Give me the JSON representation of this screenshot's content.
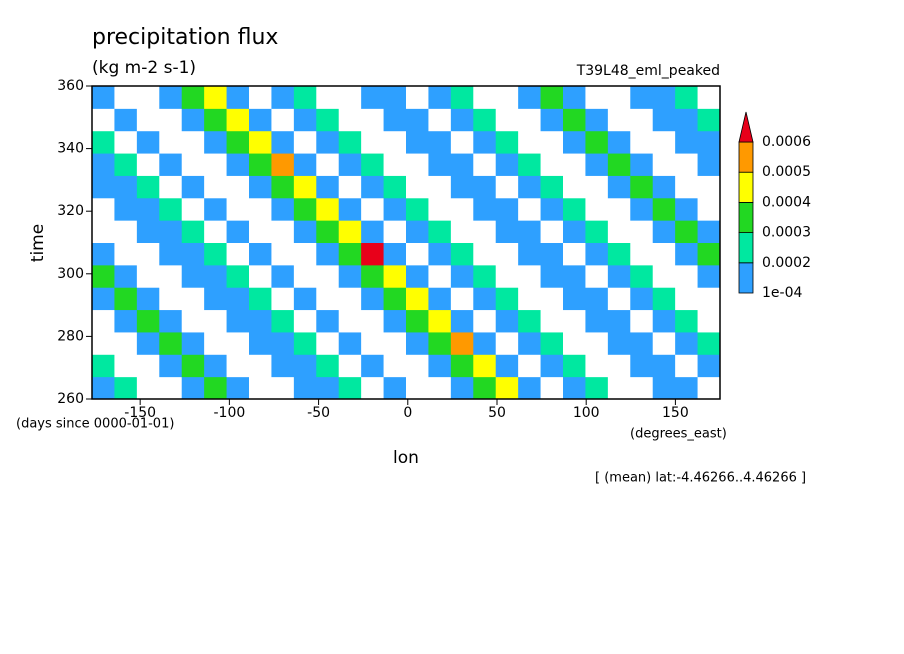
{
  "chart_data": {
    "type": "contour",
    "title": "precipitation flux",
    "subtitle": "(kg m-2 s-1)",
    "annotation": "T39L48_eml_peaked",
    "xlabel": "lon",
    "ylabel": "time",
    "yunits": "(days since 0000-01-01)",
    "xunits": "(degrees_east)",
    "footnote": "[ (mean) lat:-4.46266..4.46266 ]",
    "xlim": [
      -177,
      175
    ],
    "ylim": [
      260,
      360
    ],
    "xticks": [
      -150,
      -100,
      -50,
      0,
      50,
      100,
      150
    ],
    "yticks": [
      260,
      280,
      300,
      320,
      340,
      360
    ],
    "levels": [
      {
        "value": 0.0001,
        "label": "1e-04"
      },
      0.0002,
      0.0003,
      0.0004,
      0.0005,
      0.0006
    ],
    "colors": [
      "#2ea0ff",
      "#00e8a0",
      "#22d822",
      "#ffff00",
      "#ff9900",
      "#e8001a"
    ],
    "z": [
      [
        0.00015,
        0.00025,
        0,
        0,
        0.00015,
        0.00035,
        0.00015,
        0,
        0,
        0.00015,
        0.00015,
        0.00025,
        0,
        0.00015,
        0,
        0,
        0.00015,
        0.00035,
        0.00045,
        0.00015,
        0,
        0.00015,
        0.00025,
        0,
        0,
        0.00015,
        0.00015,
        0
      ],
      [
        0.00025,
        0,
        0,
        0.00015,
        0.00035,
        0.00015,
        0,
        0,
        0.00015,
        0.00015,
        0.00025,
        0,
        0.00015,
        0,
        0,
        0.00015,
        0.00035,
        0.00045,
        0.00015,
        0,
        0.00015,
        0.00025,
        0,
        0,
        0.00015,
        0.00015,
        0,
        0.00015
      ],
      [
        0,
        0,
        0.00015,
        0.00035,
        0.00015,
        0,
        0,
        0.00015,
        0.00015,
        0.00025,
        0,
        0.00015,
        0,
        0,
        0.00015,
        0.00035,
        0.00055,
        0.00015,
        0,
        0.00015,
        0.00025,
        0,
        0,
        0.00015,
        0.00015,
        0,
        0.00015,
        0.00025
      ],
      [
        0,
        0.00015,
        0.00035,
        0.00015,
        0,
        0,
        0.00015,
        0.00015,
        0.00025,
        0,
        0.00015,
        0,
        0,
        0.00015,
        0.00035,
        0.00045,
        0.00015,
        0,
        0.00015,
        0.00025,
        0,
        0,
        0.00015,
        0.00015,
        0,
        0.00015,
        0.00025,
        0
      ],
      [
        0.00015,
        0.00035,
        0.00015,
        0,
        0,
        0.00015,
        0.00015,
        0.00025,
        0,
        0.00015,
        0,
        0,
        0.00015,
        0.00035,
        0.00045,
        0.00015,
        0,
        0.00015,
        0.00025,
        0,
        0,
        0.00015,
        0.00015,
        0,
        0.00015,
        0.00025,
        0,
        0
      ],
      [
        0.00035,
        0.00015,
        0,
        0,
        0.00015,
        0.00015,
        0.00025,
        0,
        0.00015,
        0,
        0,
        0.00015,
        0.00035,
        0.00045,
        0.00015,
        0,
        0.00015,
        0.00025,
        0,
        0,
        0.00015,
        0.00015,
        0,
        0.00015,
        0.00025,
        0,
        0,
        0.00015
      ],
      [
        0.00015,
        0,
        0,
        0.00015,
        0.00015,
        0.00025,
        0,
        0.00015,
        0,
        0,
        0.00015,
        0.00035,
        0.00065,
        0.00015,
        0,
        0.00015,
        0.00025,
        0,
        0,
        0.00015,
        0.00015,
        0,
        0.00015,
        0.00025,
        0,
        0,
        0.00015,
        0.00035
      ],
      [
        0,
        0,
        0.00015,
        0.00015,
        0.00025,
        0,
        0.00015,
        0,
        0,
        0.00015,
        0.00035,
        0.00045,
        0.00015,
        0,
        0.00015,
        0.00025,
        0,
        0,
        0.00015,
        0.00015,
        0,
        0.00015,
        0.00025,
        0,
        0,
        0.00015,
        0.00035,
        0.00015
      ],
      [
        0,
        0.00015,
        0.00015,
        0.00025,
        0,
        0.00015,
        0,
        0,
        0.00015,
        0.00035,
        0.00045,
        0.00015,
        0,
        0.00015,
        0.00025,
        0,
        0,
        0.00015,
        0.00015,
        0,
        0.00015,
        0.00025,
        0,
        0,
        0.00015,
        0.00035,
        0.00015,
        0
      ],
      [
        0.00015,
        0.00015,
        0.00025,
        0,
        0.00015,
        0,
        0,
        0.00015,
        0.00035,
        0.00045,
        0.00015,
        0,
        0.00015,
        0.00025,
        0,
        0,
        0.00015,
        0.00015,
        0,
        0.00015,
        0.00025,
        0,
        0,
        0.00015,
        0.00035,
        0.00015,
        0,
        0
      ],
      [
        0.00015,
        0.00025,
        0,
        0.00015,
        0,
        0,
        0.00015,
        0.00035,
        0.00055,
        0.00015,
        0,
        0.00015,
        0.00025,
        0,
        0,
        0.00015,
        0.00015,
        0,
        0.00015,
        0.00025,
        0,
        0,
        0.00015,
        0.00035,
        0.00015,
        0,
        0,
        0.00015
      ],
      [
        0.00025,
        0,
        0.00015,
        0,
        0,
        0.00015,
        0.00035,
        0.00045,
        0.00015,
        0,
        0.00015,
        0.00025,
        0,
        0,
        0.00015,
        0.00015,
        0,
        0.00015,
        0.00025,
        0,
        0,
        0.00015,
        0.00035,
        0.00015,
        0,
        0,
        0.00015,
        0.00015
      ],
      [
        0,
        0.00015,
        0,
        0,
        0.00015,
        0.00035,
        0.00045,
        0.00015,
        0,
        0.00015,
        0.00025,
        0,
        0,
        0.00015,
        0.00015,
        0,
        0.00015,
        0.00025,
        0,
        0,
        0.00015,
        0.00035,
        0.00015,
        0,
        0,
        0.00015,
        0.00015,
        0.00025
      ],
      [
        0.00015,
        0,
        0,
        0.00015,
        0.00035,
        0.00045,
        0.00015,
        0,
        0.00015,
        0.00025,
        0,
        0,
        0.00015,
        0.00015,
        0,
        0.00015,
        0.00025,
        0,
        0,
        0.00015,
        0.00035,
        0.00015,
        0,
        0,
        0.00015,
        0.00015,
        0.00025,
        0
      ]
    ]
  }
}
